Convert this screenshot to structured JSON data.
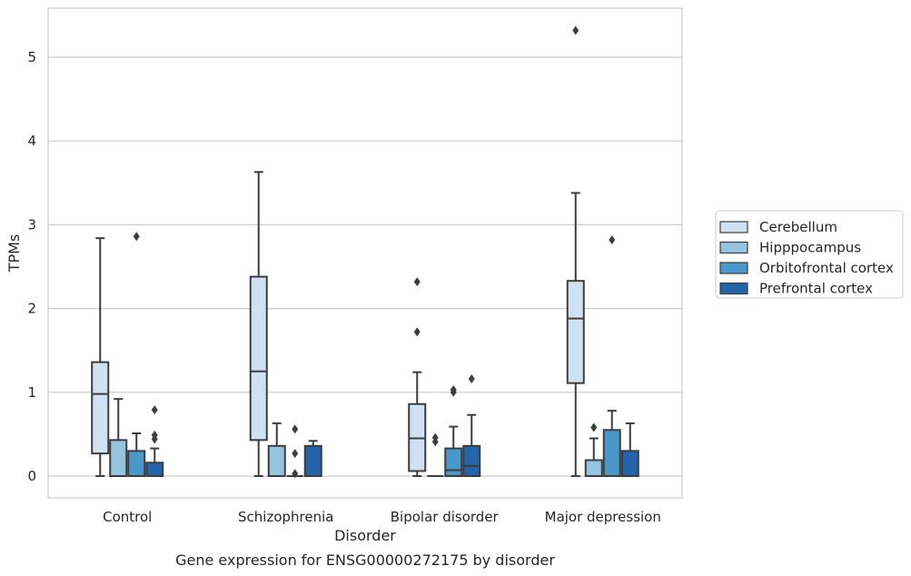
{
  "chart_data": {
    "type": "box",
    "caption": "Gene expression for ENSG00000272175 by disorder",
    "xlabel": "Disorder",
    "ylabel": "TPMs",
    "ylim": [
      -0.25,
      5.6
    ],
    "yticks": [
      0,
      1,
      2,
      3,
      4,
      5
    ],
    "grid": "horizontal",
    "legend_position": "right",
    "categories": [
      "Control",
      "Schizophrenia",
      "Bipolar disorder",
      "Major depression"
    ],
    "series": [
      {
        "name": "Cerebellum",
        "color": "#d0e1f2",
        "boxes": [
          {
            "whislo": 0.0,
            "q1": 0.27,
            "med": 0.98,
            "q3": 1.36,
            "whishi": 2.84,
            "fliers": []
          },
          {
            "whislo": 0.0,
            "q1": 0.43,
            "med": 1.25,
            "q3": 2.38,
            "whishi": 3.63,
            "fliers": []
          },
          {
            "whislo": 0.0,
            "q1": 0.06,
            "med": 0.45,
            "q3": 0.86,
            "whishi": 1.24,
            "fliers": [
              1.72,
              2.32
            ]
          },
          {
            "whislo": 0.0,
            "q1": 1.11,
            "med": 1.88,
            "q3": 2.33,
            "whishi": 3.38,
            "fliers": [
              5.32
            ]
          }
        ]
      },
      {
        "name": "Hipppocampus",
        "color": "#94c4df",
        "boxes": [
          {
            "whislo": 0.0,
            "q1": 0.0,
            "med": 0.0,
            "q3": 0.43,
            "whishi": 0.92,
            "fliers": []
          },
          {
            "whislo": 0.0,
            "q1": 0.0,
            "med": 0.0,
            "q3": 0.36,
            "whishi": 0.63,
            "fliers": []
          },
          {
            "whislo": 0.0,
            "q1": 0.0,
            "med": 0.0,
            "q3": 0.0,
            "whishi": 0.0,
            "fliers": [
              0.41,
              0.46
            ]
          },
          {
            "whislo": 0.0,
            "q1": 0.0,
            "med": 0.0,
            "q3": 0.19,
            "whishi": 0.45,
            "fliers": [
              0.58
            ]
          }
        ]
      },
      {
        "name": "Orbitofrontal cortex",
        "color": "#4a98c9",
        "boxes": [
          {
            "whislo": 0.0,
            "q1": 0.0,
            "med": 0.0,
            "q3": 0.3,
            "whishi": 0.51,
            "fliers": [
              2.86
            ]
          },
          {
            "whislo": 0.0,
            "q1": 0.0,
            "med": 0.0,
            "q3": 0.0,
            "whishi": 0.0,
            "fliers": [
              0.03,
              0.27,
              0.56
            ]
          },
          {
            "whislo": 0.0,
            "q1": 0.0,
            "med": 0.07,
            "q3": 0.33,
            "whishi": 0.59,
            "fliers": [
              1.0,
              1.03
            ]
          },
          {
            "whislo": 0.0,
            "q1": 0.0,
            "med": 0.0,
            "q3": 0.55,
            "whishi": 0.78,
            "fliers": [
              2.82
            ]
          }
        ]
      },
      {
        "name": "Prefrontal cortex",
        "color": "#2464ab",
        "boxes": [
          {
            "whislo": 0.0,
            "q1": 0.0,
            "med": 0.0,
            "q3": 0.16,
            "whishi": 0.33,
            "fliers": [
              0.44,
              0.49,
              0.79
            ]
          },
          {
            "whislo": 0.0,
            "q1": 0.0,
            "med": 0.0,
            "q3": 0.36,
            "whishi": 0.42,
            "fliers": []
          },
          {
            "whislo": 0.0,
            "q1": 0.0,
            "med": 0.12,
            "q3": 0.36,
            "whishi": 0.73,
            "fliers": [
              1.16
            ]
          },
          {
            "whislo": 0.0,
            "q1": 0.0,
            "med": 0.0,
            "q3": 0.3,
            "whishi": 0.63,
            "fliers": []
          }
        ]
      }
    ]
  }
}
